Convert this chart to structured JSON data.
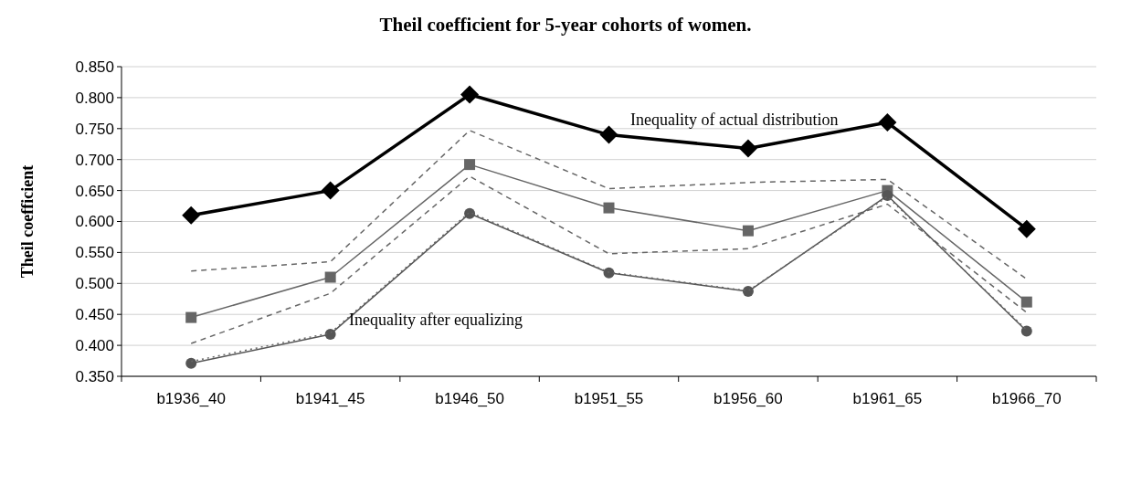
{
  "chart_data": {
    "type": "line",
    "title": "Theil coefficient for 5-year cohorts of women.",
    "ylabel": "Theil coefficient",
    "categories": [
      "b1936_40",
      "b1941_45",
      "b1946_50",
      "b1951_55",
      "b1956_60",
      "b1961_65",
      "b1966_70"
    ],
    "series": [
      {
        "color": "#000000",
        "marker": "diamond",
        "line_style": "solid",
        "values": [
          0.61,
          0.65,
          0.805,
          0.74,
          0.718,
          0.76,
          0.588
        ]
      },
      {
        "color": "#666666",
        "marker": "none",
        "line_style": "dashed",
        "values": [
          0.52,
          0.535,
          0.747,
          0.653,
          0.663,
          0.668,
          0.507
        ]
      },
      {
        "color": "#666666",
        "marker": "square",
        "line_style": "solid",
        "values": [
          0.445,
          0.51,
          0.692,
          0.622,
          0.585,
          0.65,
          0.47
        ]
      },
      {
        "color": "#666666",
        "marker": "none",
        "line_style": "dashed",
        "values": [
          0.403,
          0.484,
          0.673,
          0.548,
          0.556,
          0.628,
          0.453
        ]
      },
      {
        "color": "#555555",
        "marker": "circle",
        "line_style": "solid",
        "values": [
          0.371,
          0.418,
          0.613,
          0.517,
          0.487,
          0.642,
          0.423
        ]
      },
      {
        "color": "#666666",
        "marker": "none",
        "line_style": "dotted",
        "values": [
          0.374,
          0.42,
          0.615,
          0.518,
          0.488,
          0.64,
          0.425
        ]
      }
    ],
    "ylim": [
      0.35,
      0.85
    ],
    "yticks": [
      {
        "value": 0.35,
        "label": "0.350"
      },
      {
        "value": 0.4,
        "label": "0.400"
      },
      {
        "value": 0.45,
        "label": "0.450"
      },
      {
        "value": 0.5,
        "label": "0.500"
      },
      {
        "value": 0.55,
        "label": "0.550"
      },
      {
        "value": 0.6,
        "label": "0.600"
      },
      {
        "value": 0.65,
        "label": "0.650"
      },
      {
        "value": 0.7,
        "label": "0.700"
      },
      {
        "value": 0.75,
        "label": "0.750"
      },
      {
        "value": 0.8,
        "label": "0.800"
      },
      {
        "value": 0.85,
        "label": "0.850"
      }
    ],
    "grid": "y",
    "annotations": [
      "Inequality of actual distribution",
      "Inequality after equalizing"
    ]
  }
}
